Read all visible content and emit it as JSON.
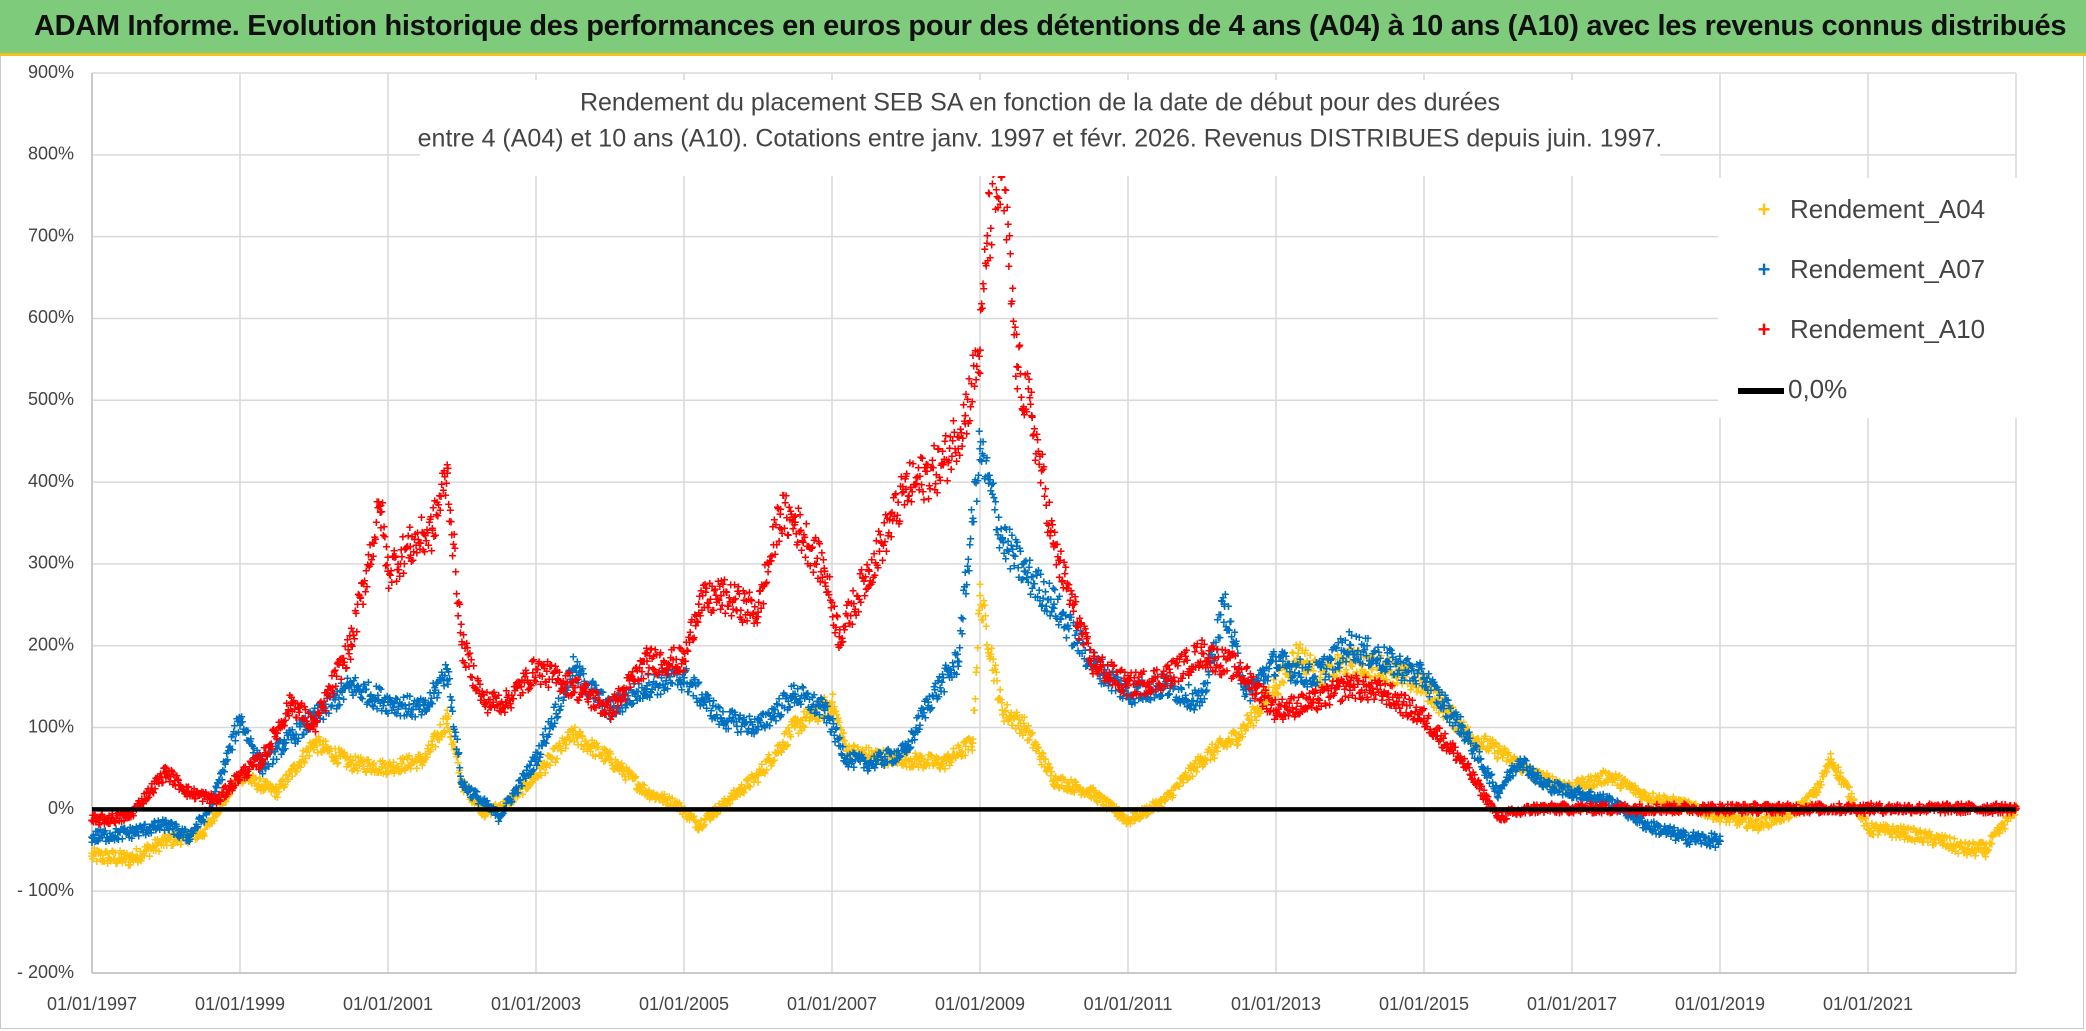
{
  "banner": {
    "title": "ADAM Informe. Evolution historique des performances en euros pour des détentions de 4 ans (A04) à 10 ans (A10) avec les revenus connus distribués"
  },
  "colors": {
    "A04": "#ffc20e",
    "A07": "#0070c0",
    "A10": "#ff0000",
    "zero": "#000000",
    "grid": "#d9d9d9",
    "banner": "#7ecb7b"
  },
  "chart_data": {
    "type": "scatter",
    "title": "Rendement du placement SEB SA en fonction de la date de début pour des durées",
    "subtitle": "entre 4 (A04) et 10 ans (A10). Cotations entre janv. 1997 et févr. 2026. Revenus DISTRIBUES depuis juin. 1997.",
    "xlabel": "",
    "ylabel": "",
    "xlim": [
      1997.0,
      2023.0
    ],
    "ylim": [
      -200,
      900
    ],
    "grid": true,
    "legend_position": "top-right",
    "x_tick_labels": [
      "01/01/1997",
      "01/01/1999",
      "01/01/2001",
      "01/01/2003",
      "01/01/2005",
      "01/01/2007",
      "01/01/2009",
      "01/01/2011",
      "01/01/2013",
      "01/01/2015",
      "01/01/2017",
      "01/01/2019",
      "01/01/2021"
    ],
    "y_tick_labels": [
      "- 200%",
      "- 100%",
      "0%",
      "100%",
      "200%",
      "300%",
      "400%",
      "500%",
      "600%",
      "700%",
      "800%",
      "900%"
    ],
    "series": [
      {
        "name": "Rendement_A04",
        "key": "A04",
        "x": [
          1997.0,
          1997.5,
          1998.0,
          1998.5,
          1999.0,
          1999.5,
          2000.0,
          2000.5,
          2001.0,
          2001.5,
          2001.8,
          2002.0,
          2002.3,
          2002.6,
          2003.0,
          2003.5,
          2004.0,
          2004.5,
          2004.9,
          2005.2,
          2005.6,
          2006.0,
          2006.5,
          2007.0,
          2007.2,
          2007.5,
          2008.0,
          2008.5,
          2008.9,
          2009.0,
          2009.3,
          2009.6,
          2010.0,
          2010.5,
          2011.0,
          2011.5,
          2012.0,
          2012.5,
          2013.0,
          2013.3,
          2013.6,
          2014.0,
          2014.5,
          2015.0,
          2015.3,
          2015.6,
          2016.0,
          2016.5,
          2017.0,
          2017.5,
          2018.0,
          2018.5,
          2019.0,
          2019.5,
          2020.0,
          2020.3,
          2020.5,
          2020.8,
          2021.0,
          2021.5,
          2022.0,
          2022.3,
          2022.6,
          2023.0
        ],
        "values": [
          -58,
          -62,
          -40,
          -30,
          40,
          20,
          80,
          55,
          50,
          60,
          110,
          30,
          -5,
          5,
          40,
          90,
          60,
          20,
          5,
          -20,
          10,
          40,
          100,
          130,
          70,
          65,
          60,
          55,
          80,
          260,
          120,
          100,
          35,
          20,
          -15,
          10,
          60,
          90,
          150,
          190,
          160,
          180,
          170,
          150,
          120,
          90,
          70,
          40,
          25,
          40,
          15,
          5,
          -10,
          -20,
          -5,
          20,
          60,
          10,
          -25,
          -30,
          -40,
          -50,
          -50,
          0
        ]
      },
      {
        "name": "Rendement_A07",
        "key": "A07",
        "x": [
          1997.0,
          1997.5,
          1998.0,
          1998.3,
          1998.6,
          1999.0,
          1999.3,
          1999.6,
          2000.0,
          2000.5,
          2001.0,
          2001.5,
          2001.8,
          2002.0,
          2002.5,
          2003.0,
          2003.5,
          2004.0,
          2004.5,
          2005.0,
          2005.5,
          2006.0,
          2006.5,
          2006.9,
          2007.2,
          2007.5,
          2008.0,
          2008.3,
          2008.7,
          2009.0,
          2009.3,
          2009.6,
          2010.0,
          2010.5,
          2011.0,
          2011.5,
          2012.0,
          2012.3,
          2012.6,
          2013.0,
          2013.5,
          2014.0,
          2014.5,
          2015.0,
          2015.5,
          2016.0,
          2016.3,
          2016.6,
          2017.0,
          2017.5,
          2018.0,
          2018.5,
          2019.0
        ],
        "values": [
          -35,
          -30,
          -20,
          -35,
          0,
          110,
          50,
          80,
          110,
          150,
          130,
          120,
          170,
          30,
          -10,
          60,
          170,
          120,
          150,
          160,
          110,
          100,
          140,
          120,
          60,
          55,
          70,
          130,
          180,
          440,
          330,
          290,
          250,
          180,
          140,
          150,
          130,
          250,
          140,
          180,
          160,
          200,
          180,
          160,
          100,
          20,
          60,
          30,
          20,
          10,
          -20,
          -35,
          -40
        ]
      },
      {
        "name": "Rendement_A10",
        "key": "A10",
        "x": [
          1997.0,
          1997.5,
          1998.0,
          1998.3,
          1998.7,
          1999.0,
          1999.3,
          1999.7,
          2000.0,
          2000.5,
          2000.9,
          2001.0,
          2001.3,
          2001.6,
          2001.8,
          2002.0,
          2002.3,
          2002.6,
          2003.0,
          2003.5,
          2004.0,
          2004.5,
          2005.0,
          2005.2,
          2005.5,
          2006.0,
          2006.3,
          2006.5,
          2006.9,
          2007.1,
          2007.5,
          2008.0,
          2008.5,
          2008.8,
          2009.0,
          2009.1,
          2009.3,
          2009.5,
          2009.7,
          2010.0,
          2010.5,
          2011.0,
          2011.5,
          2012.0,
          2012.5,
          2013.0,
          2013.5,
          2014.0,
          2014.5,
          2015.0,
          2015.5,
          2016.0,
          2016.5,
          2017.0,
          2018.0,
          2019.0,
          2020.0,
          2021.0,
          2022.0,
          2023.0
        ],
        "values": [
          -15,
          -10,
          45,
          20,
          10,
          40,
          60,
          130,
          100,
          200,
          370,
          290,
          320,
          340,
          410,
          200,
          130,
          130,
          170,
          150,
          120,
          180,
          180,
          250,
          260,
          240,
          360,
          350,
          290,
          210,
          290,
          390,
          420,
          480,
          560,
          700,
          780,
          540,
          480,
          320,
          180,
          150,
          160,
          190,
          170,
          120,
          130,
          150,
          140,
          110,
          60,
          -10,
          0,
          0,
          0,
          0,
          0,
          0,
          0,
          0
        ]
      }
    ],
    "reference_line": {
      "name": "0,0%",
      "value": 0
    }
  }
}
